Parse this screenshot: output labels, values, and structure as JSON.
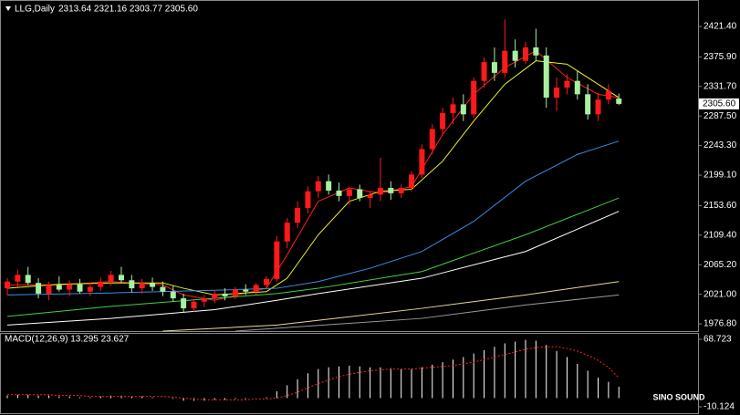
{
  "chart_data": [
    {
      "type": "candlestick",
      "title": "LLG,Daily",
      "info": "2313.64 2321.16 2303.77 2305.60",
      "last_price_label": "2305.60",
      "up_color": "#ff1a1a",
      "down_color": "#a8f0a0",
      "open": [
        2030,
        2040,
        2050,
        2038,
        2022,
        2035,
        2028,
        2036,
        2025,
        2032,
        2040,
        2050,
        2042,
        2030,
        2038,
        2032,
        2025,
        2015,
        2000,
        2010,
        2015,
        2022,
        2018,
        2028,
        2025,
        2035,
        2044,
        2100,
        2128,
        2150,
        2175,
        2190,
        2176,
        2168,
        2178,
        2165,
        2170,
        2180,
        2172,
        2180,
        2200,
        2238,
        2268,
        2292,
        2305,
        2290,
        2340,
        2368,
        2352,
        2385,
        2370,
        2390,
        2378,
        2315,
        2330,
        2340,
        2320,
        2290,
        2312,
        2313.64
      ],
      "high": [
        2045,
        2058,
        2062,
        2045,
        2040,
        2048,
        2042,
        2044,
        2038,
        2046,
        2056,
        2062,
        2050,
        2044,
        2046,
        2040,
        2034,
        2022,
        2014,
        2020,
        2026,
        2030,
        2032,
        2036,
        2038,
        2048,
        2108,
        2135,
        2160,
        2182,
        2198,
        2200,
        2188,
        2182,
        2185,
        2175,
        2225,
        2190,
        2185,
        2205,
        2245,
        2275,
        2300,
        2315,
        2320,
        2345,
        2375,
        2390,
        2432,
        2402,
        2398,
        2418,
        2390,
        2345,
        2350,
        2355,
        2335,
        2322,
        2335,
        2321.16
      ],
      "low": [
        2020,
        2032,
        2035,
        2015,
        2012,
        2025,
        2018,
        2022,
        2018,
        2026,
        2034,
        2038,
        2024,
        2022,
        2026,
        2018,
        2010,
        1994,
        1995,
        2002,
        2008,
        2012,
        2014,
        2020,
        2020,
        2030,
        2040,
        2090,
        2120,
        2142,
        2165,
        2170,
        2160,
        2155,
        2160,
        2150,
        2160,
        2162,
        2165,
        2175,
        2195,
        2230,
        2258,
        2275,
        2280,
        2285,
        2330,
        2340,
        2345,
        2360,
        2365,
        2370,
        2300,
        2295,
        2320,
        2312,
        2282,
        2280,
        2305,
        2303.77
      ],
      "close": [
        2040,
        2050,
        2038,
        2022,
        2035,
        2028,
        2036,
        2025,
        2032,
        2040,
        2050,
        2042,
        2030,
        2038,
        2032,
        2025,
        2015,
        2000,
        2010,
        2015,
        2022,
        2018,
        2028,
        2025,
        2035,
        2044,
        2100,
        2128,
        2150,
        2175,
        2190,
        2176,
        2168,
        2178,
        2165,
        2170,
        2180,
        2172,
        2180,
        2200,
        2238,
        2268,
        2292,
        2305,
        2290,
        2340,
        2368,
        2352,
        2385,
        2370,
        2390,
        2378,
        2315,
        2330,
        2340,
        2320,
        2290,
        2312,
        2325,
        2305.6
      ],
      "series": [
        {
          "color": "#ff2020",
          "x": [
            0,
            5,
            10,
            15,
            17,
            20,
            25,
            27,
            30,
            33,
            36,
            39,
            42,
            45,
            48,
            51,
            54,
            57,
            59
          ],
          "values": [
            2035,
            2035,
            2040,
            2035,
            2020,
            2012,
            2030,
            2080,
            2160,
            2180,
            2172,
            2182,
            2260,
            2320,
            2360,
            2385,
            2345,
            2320,
            2315
          ]
        },
        {
          "color": "#f0f020",
          "x": [
            0,
            5,
            10,
            15,
            17,
            20,
            25,
            27,
            30,
            33,
            36,
            39,
            42,
            45,
            48,
            51,
            54,
            57,
            59
          ],
          "values": [
            2030,
            2036,
            2038,
            2038,
            2030,
            2020,
            2025,
            2045,
            2110,
            2160,
            2175,
            2178,
            2220,
            2280,
            2335,
            2370,
            2365,
            2335,
            2315
          ]
        },
        {
          "color": "#3a8ee6",
          "x": [
            0,
            10,
            20,
            26,
            30,
            35,
            40,
            45,
            50,
            55,
            59
          ],
          "values": [
            2020,
            2023,
            2027,
            2030,
            2040,
            2060,
            2085,
            2130,
            2190,
            2230,
            2250
          ]
        },
        {
          "color": "#40d040",
          "x": [
            0,
            10,
            20,
            26,
            30,
            40,
            50,
            59
          ],
          "values": [
            1988,
            2003,
            2015,
            2022,
            2030,
            2055,
            2110,
            2165
          ]
        },
        {
          "color": "#ffffff",
          "x": [
            0,
            10,
            20,
            26,
            30,
            40,
            50,
            59
          ],
          "values": [
            1975,
            1985,
            1998,
            2012,
            2022,
            2045,
            2085,
            2145
          ]
        },
        {
          "color": "#e8d8a0",
          "x": [
            15,
            26,
            40,
            50,
            59
          ],
          "values": [
            1966,
            1975,
            2000,
            2020,
            2040
          ]
        },
        {
          "color": "#999999",
          "x": [
            22,
            40,
            50,
            59
          ],
          "values": [
            1966,
            1985,
            2005,
            2020
          ]
        }
      ],
      "ylim": [
        1966,
        2450
      ],
      "yticks": [
        {
          "value": 2421.4,
          "label": "2421.40"
        },
        {
          "value": 2375.9,
          "label": "2375.90"
        },
        {
          "value": 2331.7,
          "label": "2331.70"
        },
        {
          "value": 2287.5,
          "label": "2287.50"
        },
        {
          "value": 2243.3,
          "label": "2243.30"
        },
        {
          "value": 2199.1,
          "label": "2199.10"
        },
        {
          "value": 2153.6,
          "label": "2153.60"
        },
        {
          "value": 2109.4,
          "label": "2109.40"
        },
        {
          "value": 2065.2,
          "label": "2065.20"
        },
        {
          "value": 2021,
          "label": "2021.00"
        },
        {
          "value": 1976.8,
          "label": "1976.80"
        }
      ]
    },
    {
      "type": "macd",
      "title": "MACD(12,26,9) 13.295 23.627",
      "series": [
        {
          "color": "#ffffff",
          "style": "bar",
          "values": [
            3,
            4,
            4,
            3,
            3,
            2,
            2,
            1,
            1,
            2,
            3,
            3,
            2,
            2,
            1,
            0,
            -1,
            -3,
            -3,
            -3,
            -2,
            -2,
            -1,
            -1,
            0,
            1,
            8,
            15,
            22,
            29,
            34,
            36,
            37,
            38,
            37,
            36,
            36,
            35,
            34,
            34,
            36,
            39,
            42,
            45,
            48,
            52,
            56,
            60,
            64,
            66,
            68,
            67,
            62,
            55,
            48,
            40,
            32,
            24,
            19,
            13.295
          ]
        },
        {
          "color": "#ff2020",
          "style": "dotted",
          "values": [
            4,
            4,
            4,
            4,
            4,
            3,
            3,
            3,
            2,
            2,
            2,
            2,
            2,
            2,
            2,
            2,
            1,
            0,
            -1,
            -2,
            -2,
            -2,
            -2,
            -2,
            -1,
            -1,
            0,
            3,
            7,
            12,
            17,
            21,
            25,
            28,
            30,
            32,
            33,
            34,
            34,
            34,
            35,
            36,
            37,
            38,
            40,
            42,
            45,
            48,
            51,
            54,
            57,
            59,
            60,
            60,
            58,
            55,
            50,
            44,
            36,
            23.627
          ]
        }
      ],
      "ylim": [
        -10.124,
        68.723
      ],
      "yticks": [
        68.723,
        -10.124
      ]
    }
  ],
  "watermark": "SINO SOUND"
}
